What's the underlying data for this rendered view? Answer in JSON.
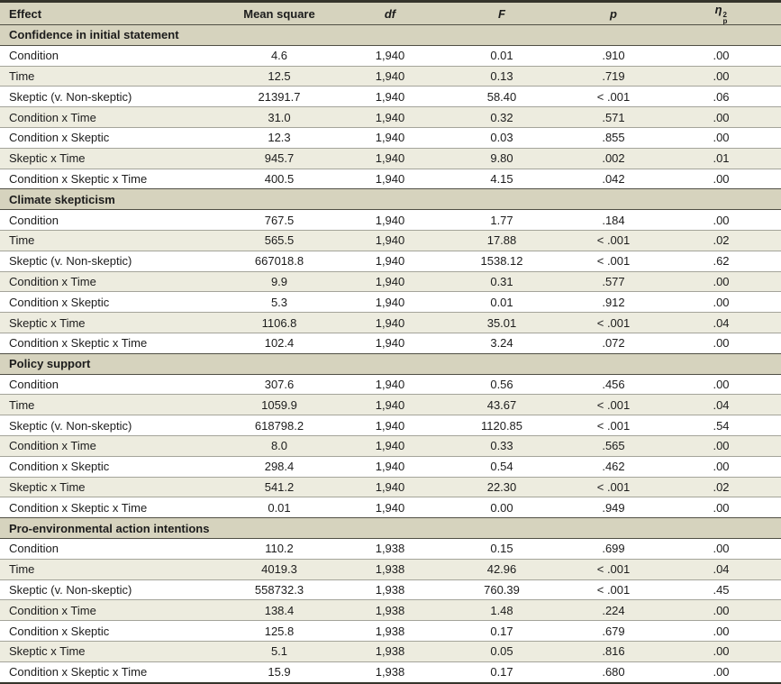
{
  "columns": {
    "effect": "Effect",
    "mean_square": "Mean square",
    "df": "df",
    "f": "F",
    "p": "p",
    "eta": {
      "symbol": "η",
      "sup": "2",
      "sub": "p"
    }
  },
  "sections": [
    {
      "title": "Confidence in initial statement",
      "rows": [
        [
          "Condition",
          "4.6",
          "1,940",
          "0.01",
          ".910",
          ".00"
        ],
        [
          "Time",
          "12.5",
          "1,940",
          "0.13",
          ".719",
          ".00"
        ],
        [
          "Skeptic (v. Non-skeptic)",
          "21391.7",
          "1,940",
          "58.40",
          "< .001",
          ".06"
        ],
        [
          "Condition x Time",
          "31.0",
          "1,940",
          "0.32",
          ".571",
          ".00"
        ],
        [
          "Condition x Skeptic",
          "12.3",
          "1,940",
          "0.03",
          ".855",
          ".00"
        ],
        [
          "Skeptic x Time",
          "945.7",
          "1,940",
          "9.80",
          ".002",
          ".01"
        ],
        [
          "Condition x Skeptic x Time",
          "400.5",
          "1,940",
          "4.15",
          ".042",
          ".00"
        ]
      ]
    },
    {
      "title": "Climate skepticism",
      "rows": [
        [
          "Condition",
          "767.5",
          "1,940",
          "1.77",
          ".184",
          ".00"
        ],
        [
          "Time",
          "565.5",
          "1,940",
          "17.88",
          "< .001",
          ".02"
        ],
        [
          "Skeptic (v. Non-skeptic)",
          "667018.8",
          "1,940",
          "1538.12",
          "< .001",
          ".62"
        ],
        [
          "Condition x Time",
          "9.9",
          "1,940",
          "0.31",
          ".577",
          ".00"
        ],
        [
          "Condition x Skeptic",
          "5.3",
          "1,940",
          "0.01",
          ".912",
          ".00"
        ],
        [
          "Skeptic x Time",
          "1106.8",
          "1,940",
          "35.01",
          "< .001",
          ".04"
        ],
        [
          "Condition x Skeptic x Time",
          "102.4",
          "1,940",
          "3.24",
          ".072",
          ".00"
        ]
      ]
    },
    {
      "title": "Policy support",
      "rows": [
        [
          "Condition",
          "307.6",
          "1,940",
          "0.56",
          ".456",
          ".00"
        ],
        [
          "Time",
          "1059.9",
          "1,940",
          "43.67",
          "< .001",
          ".04"
        ],
        [
          "Skeptic (v. Non-skeptic)",
          "618798.2",
          "1,940",
          "1120.85",
          "< .001",
          ".54"
        ],
        [
          "Condition x Time",
          "8.0",
          "1,940",
          "0.33",
          ".565",
          ".00"
        ],
        [
          "Condition x Skeptic",
          "298.4",
          "1,940",
          "0.54",
          ".462",
          ".00"
        ],
        [
          "Skeptic x Time",
          "541.2",
          "1,940",
          "22.30",
          "< .001",
          ".02"
        ],
        [
          "Condition x Skeptic x Time",
          "0.01",
          "1,940",
          "0.00",
          ".949",
          ".00"
        ]
      ]
    },
    {
      "title": "Pro-environmental action intentions",
      "rows": [
        [
          "Condition",
          "110.2",
          "1,938",
          "0.15",
          ".699",
          ".00"
        ],
        [
          "Time",
          "4019.3",
          "1,938",
          "42.96",
          "< .001",
          ".04"
        ],
        [
          "Skeptic (v. Non-skeptic)",
          "558732.3",
          "1,938",
          "760.39",
          "< .001",
          ".45"
        ],
        [
          "Condition x Time",
          "138.4",
          "1,938",
          "1.48",
          ".224",
          ".00"
        ],
        [
          "Condition x Skeptic",
          "125.8",
          "1,938",
          "0.17",
          ".679",
          ".00"
        ],
        [
          "Skeptic x Time",
          "5.1",
          "1,938",
          "0.05",
          ".816",
          ".00"
        ],
        [
          "Condition x Skeptic x Time",
          "15.9",
          "1,938",
          "0.17",
          ".680",
          ".00"
        ]
      ]
    }
  ],
  "colors": {
    "header_bg": "#d6d3be",
    "stripe_bg": "#edecdf",
    "section_border": "#504f44",
    "row_border": "#a4a49a",
    "table_border": "#35342b",
    "text": "#1c1c1c"
  }
}
